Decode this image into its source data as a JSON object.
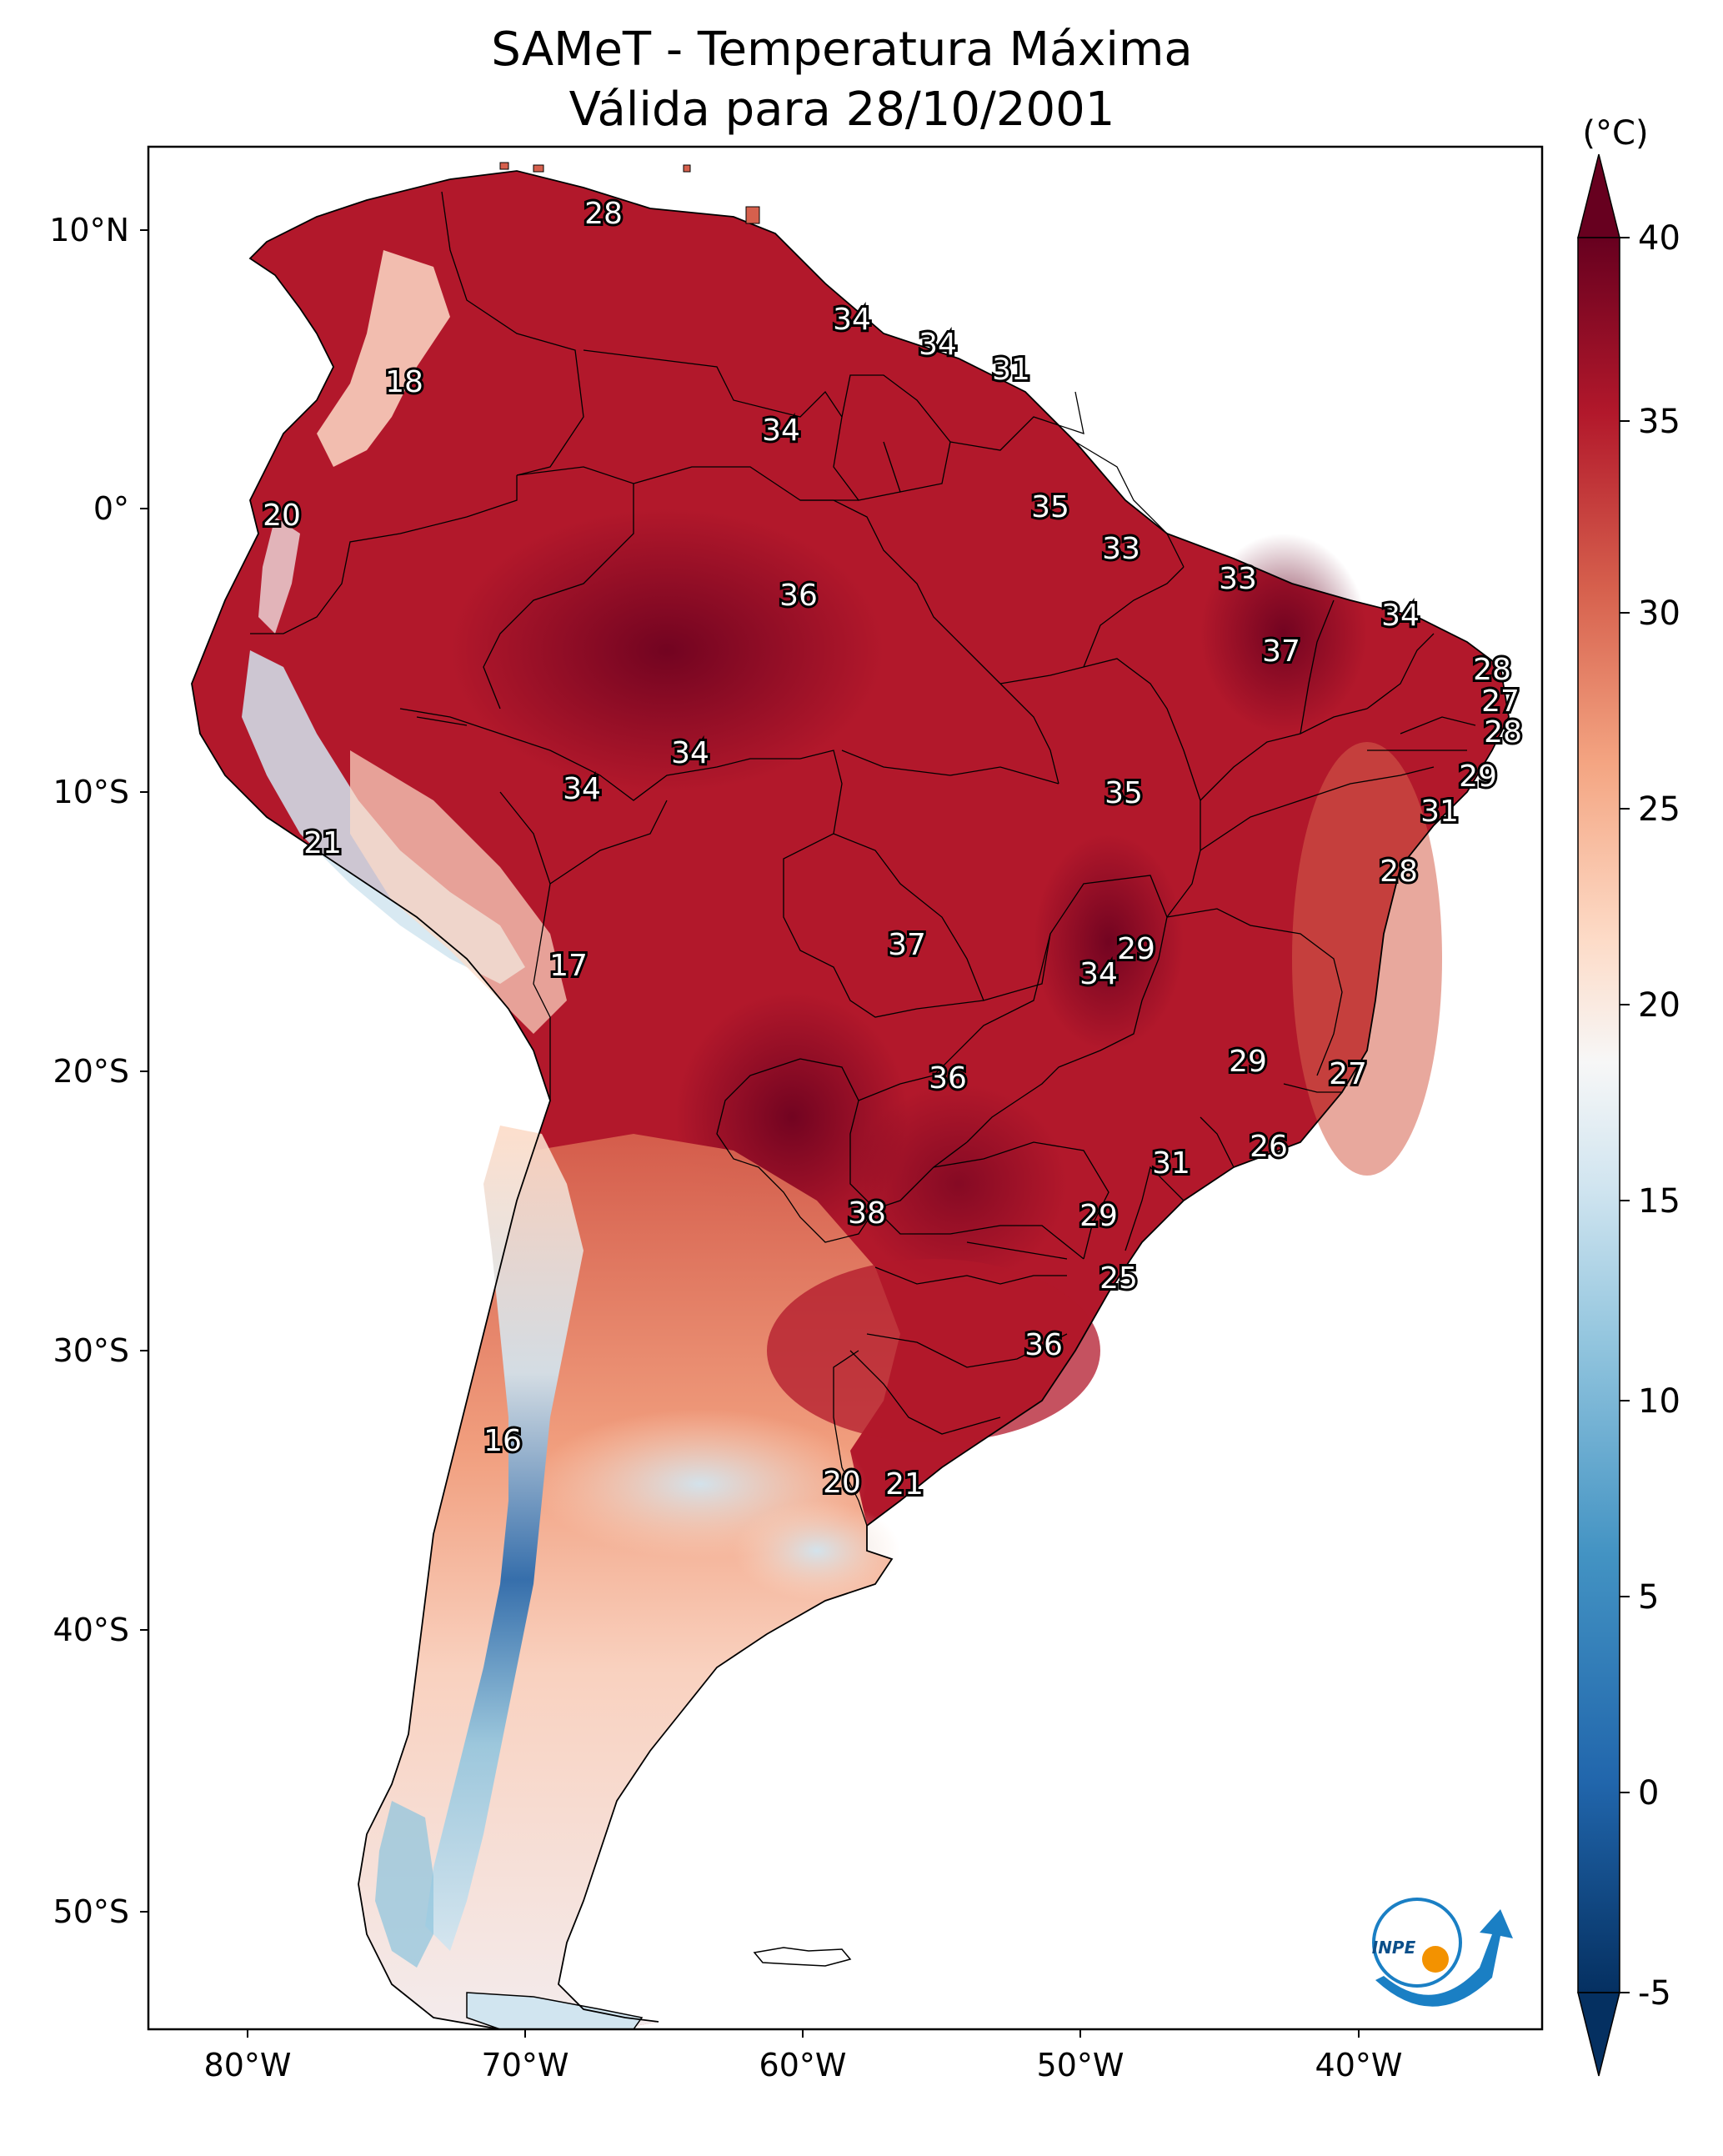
{
  "title": {
    "line1": "SAMeT - Temperatura Máxima",
    "line2": "Válida para 28/10/2001"
  },
  "axes": {
    "lon_ticks": [
      "80°W",
      "70°W",
      "60°W",
      "50°W",
      "40°W"
    ],
    "lat_ticks": [
      "10°N",
      "0°",
      "10°S",
      "20°S",
      "30°S",
      "40°S",
      "50°S"
    ]
  },
  "colorbar": {
    "unit": "(°C)",
    "ticks": [
      "40",
      "35",
      "30",
      "25",
      "20",
      "15",
      "10",
      "5",
      "0",
      "-5"
    ],
    "colors": [
      "#053061",
      "#2166ac",
      "#4393c3",
      "#92c5de",
      "#d1e5f0",
      "#f7f7f7",
      "#fddbc7",
      "#f4a582",
      "#d6604d",
      "#b2182b",
      "#67001f"
    ]
  },
  "station_labels": [
    {
      "text": "28"
    },
    {
      "text": "18"
    },
    {
      "text": "34"
    },
    {
      "text": "34"
    },
    {
      "text": "31"
    },
    {
      "text": "34"
    },
    {
      "text": "20"
    },
    {
      "text": "35"
    },
    {
      "text": "33"
    },
    {
      "text": "33"
    },
    {
      "text": "36"
    },
    {
      "text": "34"
    },
    {
      "text": "37"
    },
    {
      "text": "28"
    },
    {
      "text": "27"
    },
    {
      "text": "28"
    },
    {
      "text": "34"
    },
    {
      "text": "34"
    },
    {
      "text": "35"
    },
    {
      "text": "29"
    },
    {
      "text": "21"
    },
    {
      "text": "31"
    },
    {
      "text": "28"
    },
    {
      "text": "17"
    },
    {
      "text": "37"
    },
    {
      "text": "29"
    },
    {
      "text": "34"
    },
    {
      "text": "36"
    },
    {
      "text": "29"
    },
    {
      "text": "27"
    },
    {
      "text": "26"
    },
    {
      "text": "31"
    },
    {
      "text": "38"
    },
    {
      "text": "29"
    },
    {
      "text": "25"
    },
    {
      "text": "36"
    },
    {
      "text": "16"
    },
    {
      "text": "20"
    },
    {
      "text": "21"
    }
  ],
  "logo": {
    "text": "INPE"
  }
}
